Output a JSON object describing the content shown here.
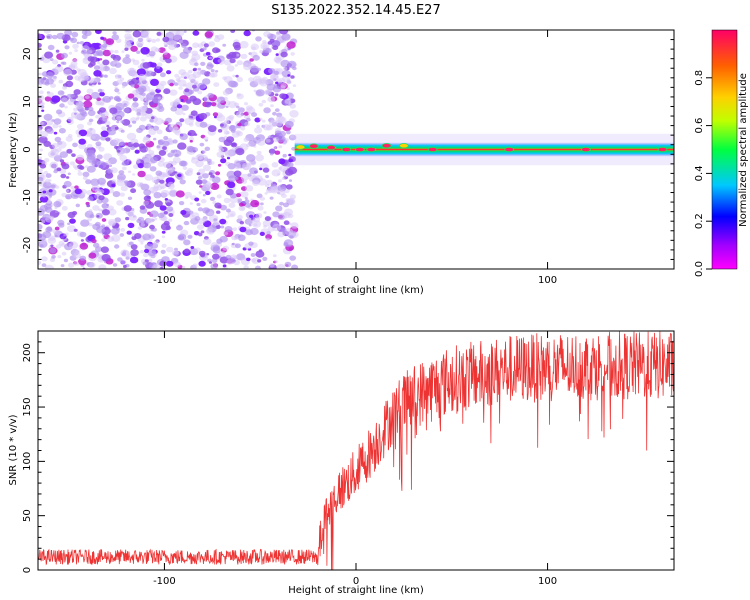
{
  "title": "S135.2022.352.14.45.E27",
  "chart_data": [
    {
      "type": "heatmap",
      "xlabel": "Height of straight line (km)",
      "ylabel": "Frequency (Hz)",
      "xlim": [
        -166,
        166
      ],
      "ylim": [
        -25,
        25
      ],
      "xticks": [
        -100,
        0,
        100
      ],
      "yticks": [
        -20,
        -10,
        0,
        10,
        20
      ],
      "noise_region": {
        "x": [
          -166,
          -32
        ],
        "y": [
          -25,
          25
        ]
      },
      "signal_band": {
        "x": [
          -32,
          166
        ],
        "center_frequency": 0,
        "half_width": 1.5
      },
      "peaks": [
        {
          "x": -29,
          "y": 0.5,
          "amplitude": 0.6
        },
        {
          "x": -22,
          "y": 0.7,
          "amplitude": 0.9
        },
        {
          "x": -13,
          "y": 0.4,
          "amplitude": 0.9
        },
        {
          "x": -5,
          "y": 0.0,
          "amplitude": 0.95
        },
        {
          "x": 2,
          "y": 0.0,
          "amplitude": 0.95
        },
        {
          "x": 8,
          "y": 0.0,
          "amplitude": 0.9
        },
        {
          "x": 16,
          "y": 0.8,
          "amplitude": 0.95
        },
        {
          "x": 25,
          "y": 0.8,
          "amplitude": 0.85
        },
        {
          "x": 40,
          "y": 0.0,
          "amplitude": 0.95
        },
        {
          "x": 80,
          "y": 0.0,
          "amplitude": 0.95
        },
        {
          "x": 120,
          "y": 0.0,
          "amplitude": 0.95
        },
        {
          "x": 160,
          "y": 0.0,
          "amplitude": 0.95
        }
      ]
    },
    {
      "type": "colorbar",
      "label": "Normalized spectral amplitude",
      "range": [
        0,
        1
      ],
      "ticks": [
        0.0,
        0.2,
        0.4,
        0.6,
        0.8
      ],
      "tick_labels": [
        "0.0",
        "0.2",
        "0.4",
        "0.6",
        "0.8"
      ]
    },
    {
      "type": "line",
      "xlabel": "Height of straight line (km)",
      "ylabel": "SNR (10 * v/v)",
      "xlim": [
        -166,
        166
      ],
      "ylim": [
        0,
        220
      ],
      "xticks": [
        -100,
        0,
        100
      ],
      "yticks": [
        0,
        50,
        100,
        150,
        200
      ],
      "color": "#ee3333",
      "profile": [
        {
          "x": -166,
          "y": 12
        },
        {
          "x": -20,
          "y": 12
        },
        {
          "x": -17,
          "y": 45
        },
        {
          "x": -10,
          "y": 70
        },
        {
          "x": 0,
          "y": 90
        },
        {
          "x": 10,
          "y": 115
        },
        {
          "x": 20,
          "y": 145
        },
        {
          "x": 30,
          "y": 160
        },
        {
          "x": 50,
          "y": 175
        },
        {
          "x": 80,
          "y": 185
        },
        {
          "x": 120,
          "y": 188
        },
        {
          "x": 166,
          "y": 188
        }
      ]
    }
  ]
}
